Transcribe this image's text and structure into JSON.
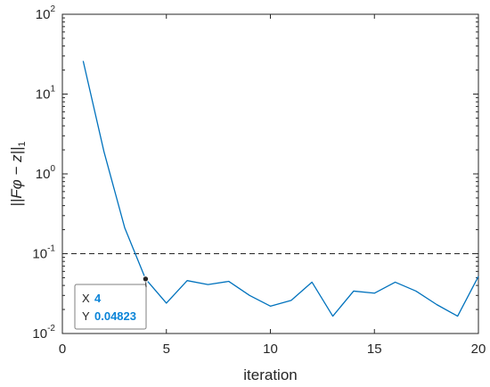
{
  "chart_data": {
    "type": "line",
    "xlabel": "iteration",
    "ylabel": "||Fφ − z||",
    "ylabel_subscript": "1",
    "x_scale": "linear",
    "y_scale": "log",
    "xlim": [
      0,
      20
    ],
    "ylim": [
      0.01,
      100
    ],
    "x_ticks": [
      0,
      5,
      10,
      15,
      20
    ],
    "x_tick_labels": [
      "0",
      "5",
      "10",
      "15",
      "20"
    ],
    "y_ticks": [
      0.01,
      0.1,
      1,
      10,
      100
    ],
    "y_tick_base": "10",
    "y_tick_exponents": [
      "-2",
      "-1",
      "0",
      "1",
      "2"
    ],
    "grid": false,
    "series": [
      {
        "color": "#0072bd",
        "x": [
          1,
          2,
          3,
          4,
          5,
          6,
          7,
          8,
          9,
          10,
          11,
          12,
          13,
          14,
          15,
          16,
          17,
          18,
          19,
          20
        ],
        "y": [
          26,
          1.9,
          0.21,
          0.04823,
          0.024,
          0.046,
          0.041,
          0.045,
          0.03,
          0.022,
          0.026,
          0.044,
          0.0165,
          0.034,
          0.032,
          0.044,
          0.034,
          0.023,
          0.0165,
          0.052
        ]
      }
    ],
    "reference_line": {
      "y": 0.1,
      "style": "dashed",
      "color": "#262626"
    },
    "datatip": {
      "x_key": "X",
      "x_value": "4",
      "y_key": "Y",
      "y_value": "0.04823",
      "point": [
        4,
        0.04823
      ]
    }
  }
}
